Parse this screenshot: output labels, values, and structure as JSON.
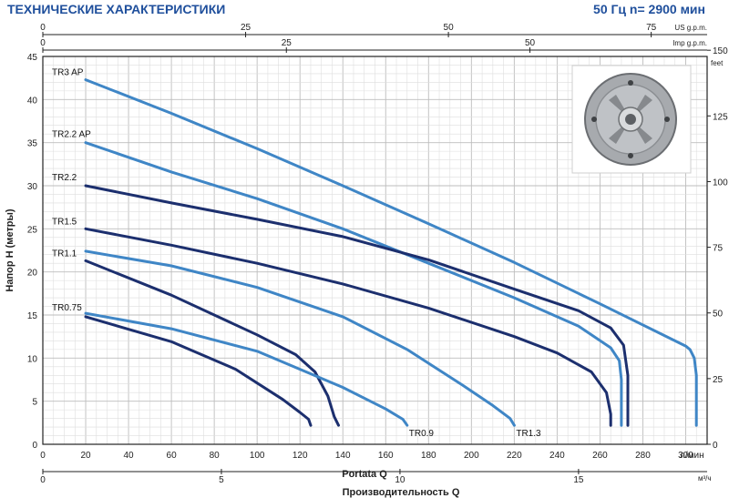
{
  "header": {
    "title": "ТЕХНИЧЕСКИЕ ХАРАКТЕРИСТИКИ",
    "spec": "50 Гц n= 2900 мин"
  },
  "colors": {
    "dark": "#1c2f6e",
    "light": "#3f86c6",
    "grid": "#c8c8c8",
    "title": "#1f4f9c"
  },
  "chart_data": {
    "type": "line",
    "xlabel": "Portata Q",
    "xlabel2": "Производительность Q",
    "ylabel": "Напор Н (метры)",
    "ylabel_right": "feet",
    "xunit": "л/мин",
    "xunit2": "м³/ч",
    "xunit_us": "US g.p.m.",
    "xunit_imp": "Imp g.p.m.",
    "xlim": [
      0,
      310
    ],
    "ylim": [
      0,
      45
    ],
    "x_ticks": [
      0,
      20,
      40,
      60,
      80,
      100,
      120,
      140,
      160,
      180,
      200,
      220,
      240,
      260,
      280,
      300
    ],
    "y_ticks": [
      0,
      5,
      10,
      15,
      20,
      25,
      30,
      35,
      40,
      45
    ],
    "feet_ticks": [
      0,
      25,
      50,
      75,
      100,
      125,
      150
    ],
    "m3h_ticks": [
      0,
      5,
      10,
      15
    ],
    "us_ticks": [
      0,
      25,
      50,
      75
    ],
    "imp_ticks": [
      0,
      25,
      50
    ],
    "grid": true,
    "series": [
      {
        "name": "TR3 AP",
        "color": "light",
        "points": [
          [
            20,
            42.3
          ],
          [
            60,
            38.4
          ],
          [
            100,
            34.3
          ],
          [
            140,
            30.0
          ],
          [
            180,
            25.6
          ],
          [
            220,
            21.1
          ],
          [
            260,
            16.3
          ],
          [
            300,
            11.4
          ],
          [
            302,
            11.0
          ],
          [
            304,
            10.0
          ],
          [
            305,
            8.0
          ],
          [
            305,
            2.2
          ]
        ]
      },
      {
        "name": "TR2.2 AP",
        "color": "light",
        "points": [
          [
            20,
            35.0
          ],
          [
            60,
            31.6
          ],
          [
            100,
            28.5
          ],
          [
            140,
            25.0
          ],
          [
            180,
            21.0
          ],
          [
            220,
            17.0
          ],
          [
            250,
            13.7
          ],
          [
            265,
            11.2
          ],
          [
            269,
            9.7
          ],
          [
            270,
            7.5
          ],
          [
            270,
            2.2
          ]
        ]
      },
      {
        "name": "TR2.2",
        "color": "dark",
        "points": [
          [
            20,
            30.0
          ],
          [
            60,
            28.0
          ],
          [
            100,
            26.1
          ],
          [
            140,
            24.1
          ],
          [
            180,
            21.4
          ],
          [
            220,
            18.0
          ],
          [
            250,
            15.5
          ],
          [
            265,
            13.5
          ],
          [
            271,
            11.5
          ],
          [
            273,
            8.0
          ],
          [
            273,
            2.2
          ]
        ]
      },
      {
        "name": "TR1.5",
        "color": "dark",
        "points": [
          [
            20,
            25.0
          ],
          [
            60,
            23.1
          ],
          [
            100,
            21.0
          ],
          [
            140,
            18.6
          ],
          [
            180,
            15.8
          ],
          [
            220,
            12.5
          ],
          [
            240,
            10.6
          ],
          [
            256,
            8.4
          ],
          [
            263,
            6.0
          ],
          [
            265,
            3.5
          ],
          [
            265,
            2.2
          ]
        ]
      },
      {
        "name": "TR1.3",
        "color": "light",
        "points": [
          [
            20,
            22.4
          ],
          [
            60,
            20.7
          ],
          [
            100,
            18.2
          ],
          [
            140,
            14.8
          ],
          [
            170,
            11.0
          ],
          [
            195,
            7.0
          ],
          [
            210,
            4.5
          ],
          [
            218,
            3.0
          ],
          [
            220,
            2.2
          ]
        ]
      },
      {
        "name": "TR1.1",
        "color": "dark",
        "points": [
          [
            20,
            21.3
          ],
          [
            60,
            17.3
          ],
          [
            100,
            12.7
          ],
          [
            118,
            10.4
          ],
          [
            127,
            8.4
          ],
          [
            133,
            5.6
          ],
          [
            136,
            3.2
          ],
          [
            138,
            2.2
          ]
        ]
      },
      {
        "name": "TR0.9",
        "color": "light",
        "points": [
          [
            20,
            15.2
          ],
          [
            60,
            13.4
          ],
          [
            100,
            10.8
          ],
          [
            140,
            6.6
          ],
          [
            160,
            4.1
          ],
          [
            168,
            2.9
          ],
          [
            170,
            2.2
          ]
        ]
      },
      {
        "name": "TR0.75",
        "color": "dark",
        "points": [
          [
            20,
            14.8
          ],
          [
            60,
            11.9
          ],
          [
            90,
            8.7
          ],
          [
            112,
            5.2
          ],
          [
            120,
            3.7
          ],
          [
            124,
            2.9
          ],
          [
            125,
            2.2
          ]
        ]
      }
    ],
    "annotations": [
      "TR0.9",
      "TR1.3"
    ]
  }
}
